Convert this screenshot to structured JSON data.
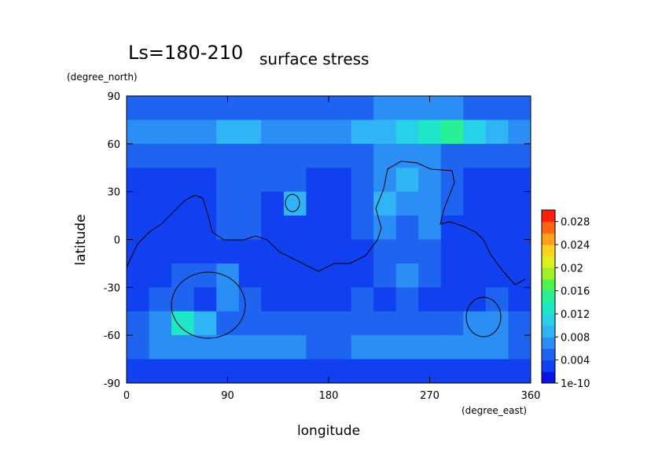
{
  "chart_data": {
    "type": "heatmap",
    "title": "Ls=180-210",
    "subtitle": "surface stress",
    "x_label": "longitude",
    "y_label": "latitude",
    "x_unit": "(degree_east)",
    "y_unit": "(degree_north)",
    "xlim": [
      0,
      360
    ],
    "ylim": [
      -90,
      90
    ],
    "xticks": [
      0,
      90,
      180,
      270,
      360
    ],
    "yticks": [
      -90,
      -60,
      -30,
      0,
      30,
      60,
      90
    ],
    "x": [
      10,
      30,
      50,
      70,
      90,
      110,
      130,
      150,
      170,
      190,
      210,
      230,
      250,
      270,
      290,
      310,
      330,
      350
    ],
    "y": [
      82.5,
      67.5,
      52.5,
      37.5,
      22.5,
      7.5,
      -7.5,
      -22.5,
      -37.5,
      -52.5,
      -67.5,
      -82.5
    ],
    "values": [
      [
        0.005,
        0.005,
        0.005,
        0.005,
        0.005,
        0.005,
        0.005,
        0.005,
        0.005,
        0.005,
        0.005,
        0.006,
        0.006,
        0.006,
        0.006,
        0.005,
        0.005,
        0.005
      ],
      [
        0.006,
        0.006,
        0.007,
        0.007,
        0.008,
        0.008,
        0.007,
        0.007,
        0.007,
        0.007,
        0.008,
        0.009,
        0.011,
        0.013,
        0.014,
        0.011,
        0.008,
        0.007
      ],
      [
        0.004,
        0.004,
        0.005,
        0.004,
        0.004,
        0.004,
        0.004,
        0.004,
        0.004,
        0.004,
        0.005,
        0.006,
        0.007,
        0.006,
        0.005,
        0.005,
        0.004,
        0.004
      ],
      [
        0.003,
        0.003,
        0.003,
        0.003,
        0.004,
        0.004,
        0.004,
        0.005,
        0.003,
        0.003,
        0.004,
        0.006,
        0.008,
        0.006,
        0.004,
        0.003,
        0.003,
        0.003
      ],
      [
        0.002,
        0.003,
        0.003,
        0.002,
        0.005,
        0.004,
        0.003,
        0.008,
        0.003,
        0.003,
        0.004,
        0.009,
        0.007,
        0.006,
        0.004,
        0.003,
        0.003,
        0.002
      ],
      [
        0.002,
        0.002,
        0.002,
        0.003,
        0.005,
        0.004,
        0.002,
        0.003,
        0.002,
        0.003,
        0.004,
        0.007,
        0.005,
        0.007,
        0.003,
        0.002,
        0.002,
        0.002
      ],
      [
        0.002,
        0.002,
        0.002,
        0.002,
        0.002,
        0.002,
        0.002,
        0.002,
        0.002,
        0.002,
        0.003,
        0.004,
        0.005,
        0.005,
        0.003,
        0.002,
        0.002,
        0.002
      ],
      [
        0.002,
        0.003,
        0.004,
        0.005,
        0.006,
        0.003,
        0.002,
        0.002,
        0.002,
        0.003,
        0.003,
        0.004,
        0.006,
        0.004,
        0.003,
        0.002,
        0.002,
        0.002
      ],
      [
        0.003,
        0.005,
        0.004,
        0.003,
        0.006,
        0.004,
        0.003,
        0.003,
        0.002,
        0.003,
        0.004,
        0.003,
        0.004,
        0.003,
        0.003,
        0.003,
        0.004,
        0.003
      ],
      [
        0.004,
        0.006,
        0.012,
        0.008,
        0.005,
        0.004,
        0.004,
        0.004,
        0.004,
        0.005,
        0.005,
        0.005,
        0.005,
        0.004,
        0.005,
        0.007,
        0.006,
        0.004
      ],
      [
        0.005,
        0.006,
        0.007,
        0.006,
        0.006,
        0.006,
        0.006,
        0.006,
        0.005,
        0.005,
        0.006,
        0.006,
        0.006,
        0.006,
        0.006,
        0.006,
        0.006,
        0.005
      ],
      [
        0.003,
        0.003,
        0.003,
        0.003,
        0.003,
        0.003,
        0.003,
        0.003,
        0.003,
        0.003,
        0.003,
        0.003,
        0.003,
        0.003,
        0.003,
        0.003,
        0.003,
        0.003
      ]
    ],
    "clim": [
      0,
      0.03
    ],
    "colorbar_ticks": [
      1e-10,
      0.004,
      0.008,
      0.012,
      0.016,
      0.02,
      0.024,
      0.028
    ],
    "colors": [
      "#0a12e6",
      "#1040f0",
      "#1e64f0",
      "#2a8ef5",
      "#30b4f5",
      "#28d2e6",
      "#1ee6c8",
      "#28f096",
      "#50f050",
      "#a0f028",
      "#dcf01e",
      "#ffd21e",
      "#ffa01e",
      "#ff6414",
      "#ff2010"
    ]
  }
}
